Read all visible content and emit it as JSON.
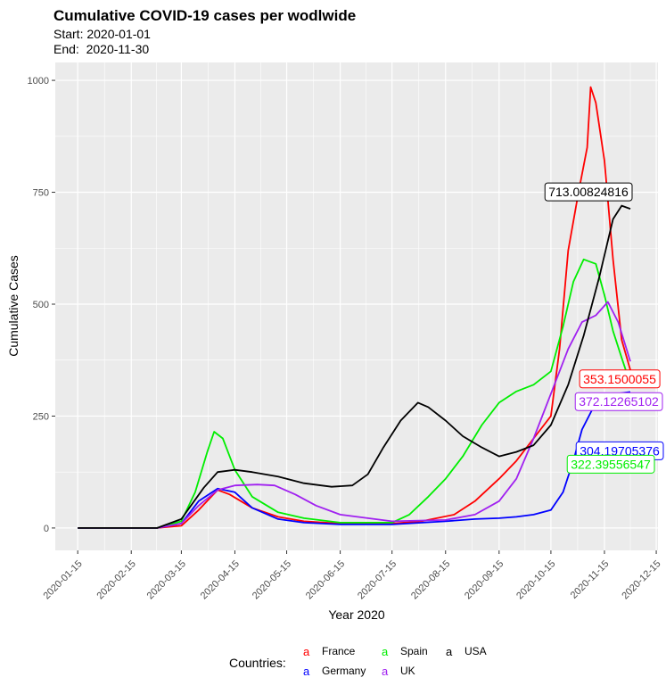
{
  "chart_data": {
    "type": "line",
    "title": "Cumulative COVID-19 cases per wodlwide",
    "subtitle_lines": [
      "Start: 2020-01-01",
      "End:  2020-11-30"
    ],
    "xlabel": "Year 2020",
    "ylabel": "Cumulative Cases",
    "ylim": [
      -50,
      1040
    ],
    "xlim": [
      "2020-01-02",
      "2020-12-16"
    ],
    "x_ticks": [
      "2020-01-15",
      "2020-02-15",
      "2020-03-15",
      "2020-04-15",
      "2020-05-15",
      "2020-06-15",
      "2020-07-15",
      "2020-08-15",
      "2020-09-15",
      "2020-10-15",
      "2020-11-15",
      "2020-12-15"
    ],
    "y_ticks": [
      0,
      250,
      500,
      750,
      1000
    ],
    "grid": true,
    "legend": {
      "title": "Countries:",
      "position": "bottom",
      "key_glyph": "a",
      "entries": [
        {
          "name": "France",
          "color": "#ff0000"
        },
        {
          "name": "Germany",
          "color": "#0000ff"
        },
        {
          "name": "Spain",
          "color": "#00ee00"
        },
        {
          "name": "UK",
          "color": "#a020f0"
        },
        {
          "name": "USA",
          "color": "#000000"
        }
      ]
    },
    "series": [
      {
        "name": "France",
        "color": "#ff0000",
        "points": [
          [
            "2020-01-15",
            0
          ],
          [
            "2020-03-01",
            0
          ],
          [
            "2020-03-15",
            5
          ],
          [
            "2020-03-25",
            40
          ],
          [
            "2020-04-05",
            85
          ],
          [
            "2020-04-12",
            75
          ],
          [
            "2020-04-25",
            45
          ],
          [
            "2020-05-10",
            25
          ],
          [
            "2020-05-25",
            15
          ],
          [
            "2020-06-15",
            10
          ],
          [
            "2020-07-15",
            10
          ],
          [
            "2020-08-01",
            15
          ],
          [
            "2020-08-20",
            30
          ],
          [
            "2020-09-01",
            60
          ],
          [
            "2020-09-15",
            110
          ],
          [
            "2020-09-25",
            150
          ],
          [
            "2020-10-05",
            200
          ],
          [
            "2020-10-15",
            250
          ],
          [
            "2020-10-20",
            400
          ],
          [
            "2020-10-25",
            620
          ],
          [
            "2020-10-31",
            750
          ],
          [
            "2020-11-05",
            850
          ],
          [
            "2020-11-07",
            985
          ],
          [
            "2020-11-10",
            950
          ],
          [
            "2020-11-15",
            820
          ],
          [
            "2020-11-20",
            600
          ],
          [
            "2020-11-25",
            420
          ],
          [
            "2020-11-30",
            353
          ]
        ],
        "end_label": "353.1500055"
      },
      {
        "name": "Germany",
        "color": "#0000ff",
        "points": [
          [
            "2020-01-15",
            0
          ],
          [
            "2020-03-01",
            0
          ],
          [
            "2020-03-15",
            10
          ],
          [
            "2020-03-25",
            60
          ],
          [
            "2020-04-05",
            88
          ],
          [
            "2020-04-15",
            80
          ],
          [
            "2020-04-25",
            45
          ],
          [
            "2020-05-10",
            20
          ],
          [
            "2020-05-25",
            12
          ],
          [
            "2020-06-15",
            8
          ],
          [
            "2020-07-15",
            8
          ],
          [
            "2020-08-15",
            15
          ],
          [
            "2020-09-01",
            20
          ],
          [
            "2020-09-15",
            22
          ],
          [
            "2020-09-25",
            25
          ],
          [
            "2020-10-05",
            30
          ],
          [
            "2020-10-15",
            40
          ],
          [
            "2020-10-22",
            80
          ],
          [
            "2020-10-28",
            150
          ],
          [
            "2020-11-02",
            220
          ],
          [
            "2020-11-08",
            265
          ],
          [
            "2020-11-15",
            285
          ],
          [
            "2020-11-22",
            300
          ],
          [
            "2020-11-30",
            304
          ]
        ],
        "end_label": "304.19705376"
      },
      {
        "name": "Spain",
        "color": "#00ee00",
        "points": [
          [
            "2020-01-15",
            0
          ],
          [
            "2020-03-01",
            0
          ],
          [
            "2020-03-15",
            15
          ],
          [
            "2020-03-23",
            80
          ],
          [
            "2020-03-30",
            170
          ],
          [
            "2020-04-03",
            215
          ],
          [
            "2020-04-08",
            200
          ],
          [
            "2020-04-15",
            130
          ],
          [
            "2020-04-25",
            70
          ],
          [
            "2020-05-10",
            35
          ],
          [
            "2020-05-25",
            22
          ],
          [
            "2020-06-15",
            12
          ],
          [
            "2020-07-15",
            12
          ],
          [
            "2020-07-25",
            30
          ],
          [
            "2020-08-05",
            70
          ],
          [
            "2020-08-15",
            110
          ],
          [
            "2020-08-25",
            160
          ],
          [
            "2020-09-05",
            230
          ],
          [
            "2020-09-15",
            280
          ],
          [
            "2020-09-25",
            305
          ],
          [
            "2020-10-05",
            320
          ],
          [
            "2020-10-15",
            350
          ],
          [
            "2020-10-22",
            450
          ],
          [
            "2020-10-28",
            550
          ],
          [
            "2020-11-03",
            600
          ],
          [
            "2020-11-10",
            590
          ],
          [
            "2020-11-15",
            520
          ],
          [
            "2020-11-20",
            440
          ],
          [
            "2020-11-25",
            380
          ],
          [
            "2020-11-30",
            322
          ]
        ],
        "end_label": "322.39556547"
      },
      {
        "name": "UK",
        "color": "#a020f0",
        "points": [
          [
            "2020-01-15",
            0
          ],
          [
            "2020-03-01",
            0
          ],
          [
            "2020-03-15",
            10
          ],
          [
            "2020-03-25",
            50
          ],
          [
            "2020-04-05",
            85
          ],
          [
            "2020-04-15",
            95
          ],
          [
            "2020-04-28",
            97
          ],
          [
            "2020-05-08",
            95
          ],
          [
            "2020-05-20",
            75
          ],
          [
            "2020-06-01",
            50
          ],
          [
            "2020-06-15",
            30
          ],
          [
            "2020-07-01",
            22
          ],
          [
            "2020-07-15",
            15
          ],
          [
            "2020-08-15",
            18
          ],
          [
            "2020-09-01",
            30
          ],
          [
            "2020-09-15",
            60
          ],
          [
            "2020-09-25",
            110
          ],
          [
            "2020-10-05",
            200
          ],
          [
            "2020-10-15",
            300
          ],
          [
            "2020-10-25",
            400
          ],
          [
            "2020-11-02",
            460
          ],
          [
            "2020-11-10",
            475
          ],
          [
            "2020-11-17",
            505
          ],
          [
            "2020-11-23",
            460
          ],
          [
            "2020-11-30",
            372
          ]
        ],
        "end_label": "372.12265102"
      },
      {
        "name": "USA",
        "color": "#000000",
        "points": [
          [
            "2020-01-15",
            0
          ],
          [
            "2020-03-01",
            0
          ],
          [
            "2020-03-15",
            20
          ],
          [
            "2020-03-28",
            90
          ],
          [
            "2020-04-05",
            125
          ],
          [
            "2020-04-15",
            130
          ],
          [
            "2020-04-25",
            125
          ],
          [
            "2020-05-10",
            115
          ],
          [
            "2020-05-25",
            100
          ],
          [
            "2020-06-10",
            92
          ],
          [
            "2020-06-22",
            95
          ],
          [
            "2020-07-01",
            120
          ],
          [
            "2020-07-10",
            180
          ],
          [
            "2020-07-20",
            240
          ],
          [
            "2020-07-30",
            280
          ],
          [
            "2020-08-05",
            270
          ],
          [
            "2020-08-15",
            240
          ],
          [
            "2020-08-25",
            205
          ],
          [
            "2020-09-05",
            180
          ],
          [
            "2020-09-15",
            160
          ],
          [
            "2020-09-25",
            170
          ],
          [
            "2020-10-05",
            185
          ],
          [
            "2020-10-15",
            230
          ],
          [
            "2020-10-25",
            320
          ],
          [
            "2020-11-03",
            430
          ],
          [
            "2020-11-12",
            560
          ],
          [
            "2020-11-20",
            690
          ],
          [
            "2020-11-25",
            720
          ],
          [
            "2020-11-30",
            713
          ]
        ],
        "end_label": "713.00824816"
      }
    ]
  }
}
